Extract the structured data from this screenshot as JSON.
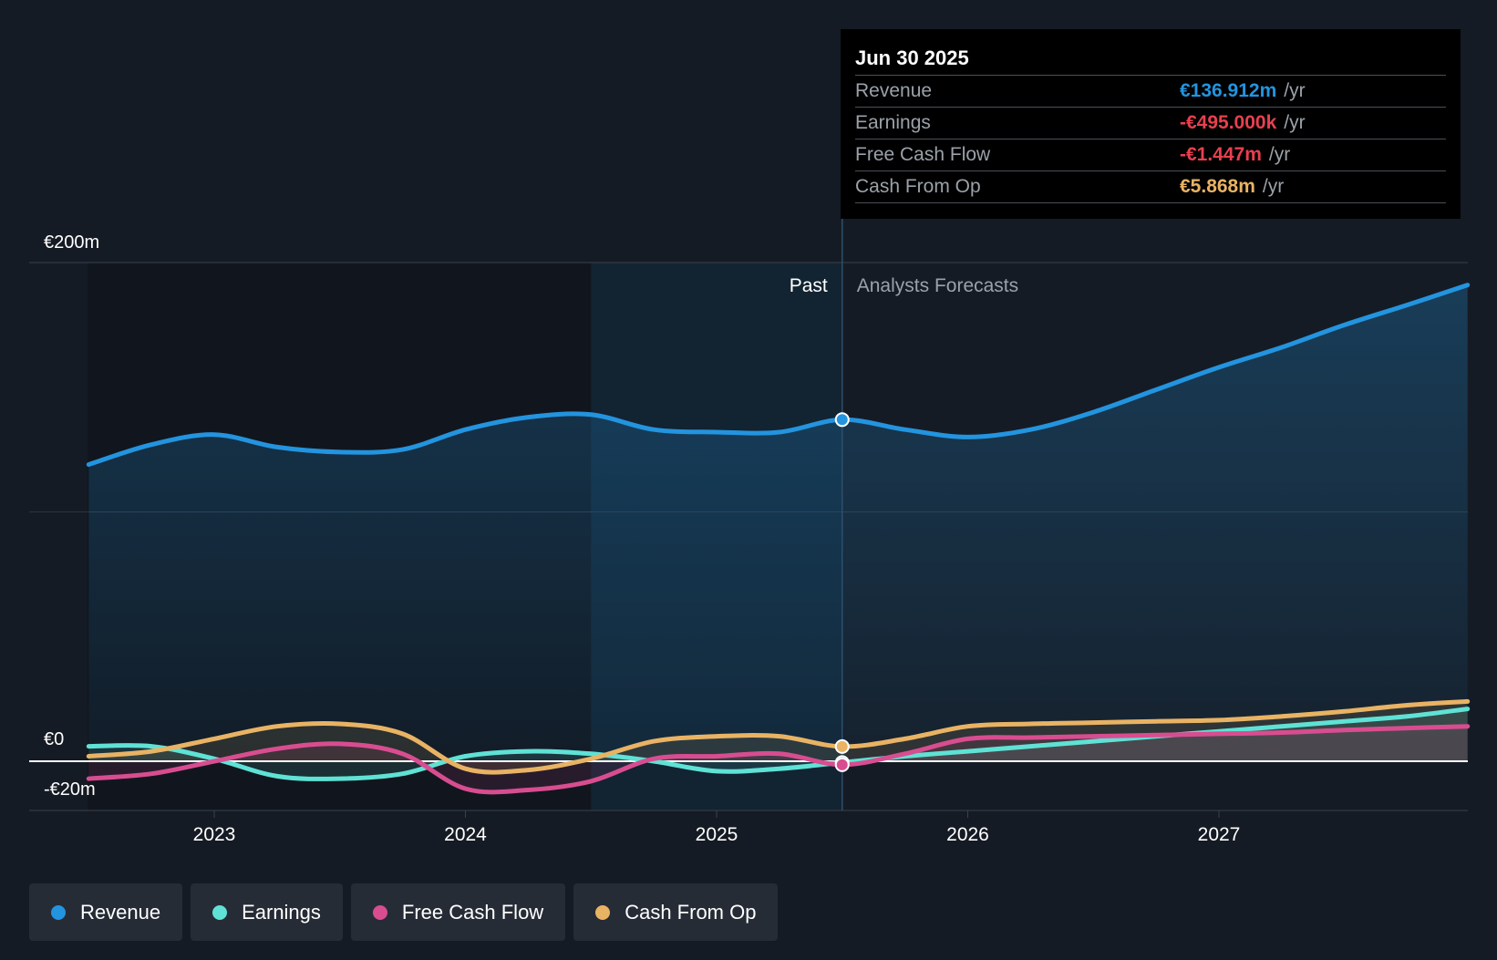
{
  "chart_data": {
    "type": "area",
    "title": "",
    "xlabel": "",
    "ylabel": "",
    "x_ticks": [
      "2023",
      "2024",
      "2025",
      "2026",
      "2027"
    ],
    "y_axis": {
      "top_label": "€200m",
      "zero_label": "€0",
      "bottom_label": "-€20m",
      "ylim": [
        -20,
        200
      ],
      "unit": "€m"
    },
    "period_labels": {
      "past": "Past",
      "forecast": "Analysts Forecasts"
    },
    "past_end": 2025.5,
    "highlight_start": 2024.5,
    "series": [
      {
        "key": "revenue",
        "name": "Revenue",
        "color": "#2394df",
        "points": [
          [
            2022.5,
            119
          ],
          [
            2022.75,
            127
          ],
          [
            2023.0,
            131
          ],
          [
            2023.25,
            126
          ],
          [
            2023.5,
            124
          ],
          [
            2023.75,
            125
          ],
          [
            2024.0,
            133
          ],
          [
            2024.25,
            138
          ],
          [
            2024.5,
            139
          ],
          [
            2024.75,
            133
          ],
          [
            2025.0,
            132
          ],
          [
            2025.25,
            132
          ],
          [
            2025.5,
            137
          ],
          [
            2025.75,
            133
          ],
          [
            2026.0,
            130
          ],
          [
            2026.25,
            133
          ],
          [
            2026.5,
            140
          ],
          [
            2026.75,
            149
          ],
          [
            2027.0,
            158
          ],
          [
            2027.25,
            166
          ],
          [
            2027.5,
            175
          ],
          [
            2027.75,
            183
          ],
          [
            2027.99,
            191
          ]
        ]
      },
      {
        "key": "earnings",
        "name": "Earnings",
        "color": "#5fe2d5",
        "points": [
          [
            2022.5,
            6
          ],
          [
            2022.75,
            6
          ],
          [
            2023.0,
            1
          ],
          [
            2023.25,
            -6
          ],
          [
            2023.5,
            -7
          ],
          [
            2023.75,
            -5
          ],
          [
            2024.0,
            2
          ],
          [
            2024.25,
            4
          ],
          [
            2024.5,
            3
          ],
          [
            2024.75,
            0
          ],
          [
            2025.0,
            -4
          ],
          [
            2025.25,
            -3
          ],
          [
            2025.5,
            -0.5
          ],
          [
            2025.75,
            2
          ],
          [
            2026.0,
            4
          ],
          [
            2026.25,
            6
          ],
          [
            2026.5,
            8
          ],
          [
            2026.75,
            10
          ],
          [
            2027.0,
            12
          ],
          [
            2027.25,
            14
          ],
          [
            2027.5,
            16
          ],
          [
            2027.75,
            18
          ],
          [
            2027.99,
            21
          ]
        ]
      },
      {
        "key": "fcf",
        "name": "Free Cash Flow",
        "color": "#d84d90",
        "points": [
          [
            2022.5,
            -7
          ],
          [
            2022.75,
            -5
          ],
          [
            2023.0,
            0
          ],
          [
            2023.25,
            5
          ],
          [
            2023.5,
            7
          ],
          [
            2023.75,
            3
          ],
          [
            2024.0,
            -11
          ],
          [
            2024.25,
            -11.5
          ],
          [
            2024.5,
            -8
          ],
          [
            2024.75,
            1
          ],
          [
            2025.0,
            2
          ],
          [
            2025.25,
            3
          ],
          [
            2025.5,
            -1.4
          ],
          [
            2025.75,
            3
          ],
          [
            2026.0,
            9
          ],
          [
            2026.25,
            9.5
          ],
          [
            2026.5,
            10
          ],
          [
            2026.75,
            10.5
          ],
          [
            2027.0,
            11
          ],
          [
            2027.25,
            11.5
          ],
          [
            2027.5,
            12.5
          ],
          [
            2027.75,
            13.3
          ],
          [
            2027.99,
            14
          ]
        ]
      },
      {
        "key": "cfo",
        "name": "Cash From Op",
        "color": "#e9b364",
        "points": [
          [
            2022.5,
            2
          ],
          [
            2022.75,
            4
          ],
          [
            2023.0,
            9
          ],
          [
            2023.25,
            14
          ],
          [
            2023.5,
            15
          ],
          [
            2023.75,
            11
          ],
          [
            2024.0,
            -3
          ],
          [
            2024.25,
            -3.5
          ],
          [
            2024.5,
            1
          ],
          [
            2024.75,
            8
          ],
          [
            2025.0,
            10
          ],
          [
            2025.25,
            10
          ],
          [
            2025.5,
            5.9
          ],
          [
            2025.75,
            9
          ],
          [
            2026.0,
            14
          ],
          [
            2026.25,
            15
          ],
          [
            2026.5,
            15.5
          ],
          [
            2026.75,
            16
          ],
          [
            2027.0,
            16.5
          ],
          [
            2027.25,
            18
          ],
          [
            2027.5,
            20
          ],
          [
            2027.75,
            22.5
          ],
          [
            2027.99,
            24
          ]
        ]
      }
    ],
    "tooltip": {
      "date": "Jun 30 2025",
      "rows": [
        {
          "label": "Revenue",
          "value": "€136.912m",
          "unit": "/yr",
          "color": "#2394df"
        },
        {
          "label": "Earnings",
          "value": "-€495.000k",
          "unit": "/yr",
          "color": "#e8404f"
        },
        {
          "label": "Free Cash Flow",
          "value": "-€1.447m",
          "unit": "/yr",
          "color": "#e8404f"
        },
        {
          "label": "Cash From Op",
          "value": "€5.868m",
          "unit": "/yr",
          "color": "#e9b364"
        }
      ]
    }
  },
  "legend": [
    {
      "label": "Revenue",
      "color": "#2394df"
    },
    {
      "label": "Earnings",
      "color": "#5fe2d5"
    },
    {
      "label": "Free Cash Flow",
      "color": "#d84d90"
    },
    {
      "label": "Cash From Op",
      "color": "#e9b364"
    }
  ]
}
